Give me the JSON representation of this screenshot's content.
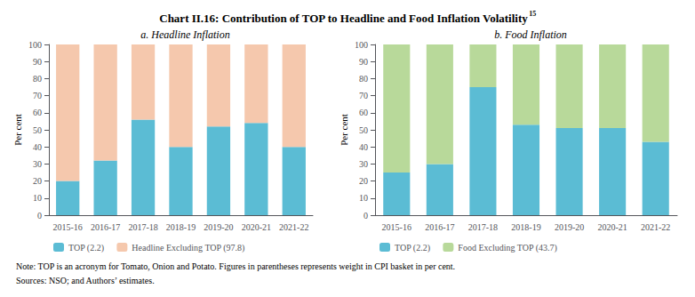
{
  "title": "Chart II.16: Contribution of TOP to Headline and Food Inflation Volatility",
  "annotations": [
    "15",
    "Note: TOP is an acronym for Tomato, Onion and Potato. Figures in parentheses represents weight in CPI basket in per cent.",
    "Sources: NSO; and Authors’ estimates."
  ],
  "chart_data": [
    {
      "type": "bar",
      "title": "a. Headline Inflation",
      "stacked": true,
      "grid": false,
      "legend": "bottom",
      "categories": [
        "2015-16",
        "2016-17",
        "2017-18",
        "2018-19",
        "2019-20",
        "2020-21",
        "2021-22"
      ],
      "ylabel": "Per cent",
      "ylim": [
        0,
        100
      ],
      "yticks": [
        0,
        10,
        20,
        30,
        40,
        50,
        60,
        70,
        80,
        90,
        100
      ],
      "series": [
        {
          "name": "TOP (2.2)",
          "color": "#5bbcd4",
          "values": [
            20,
            32,
            56,
            40,
            52,
            54,
            40
          ]
        },
        {
          "name": "Headline Excluding TOP (97.8)",
          "color": "#f5c8ad",
          "values": [
            80,
            68,
            44,
            60,
            48,
            46,
            60
          ]
        }
      ]
    },
    {
      "type": "bar",
      "title": "b. Food Inflation",
      "stacked": true,
      "grid": false,
      "legend": "bottom",
      "categories": [
        "2015-16",
        "2016-17",
        "2017-18",
        "2018-19",
        "2019-20",
        "2020-21",
        "2021-22"
      ],
      "ylabel": "Per cent",
      "ylim": [
        0,
        100
      ],
      "yticks": [
        0,
        10,
        20,
        30,
        40,
        50,
        60,
        70,
        80,
        90,
        100
      ],
      "series": [
        {
          "name": "TOP (2.2)",
          "color": "#5bbcd4",
          "values": [
            25,
            30,
            75,
            53,
            51,
            51,
            43
          ]
        },
        {
          "name": "Food Excluding TOP (43.7)",
          "color": "#b8d99a",
          "values": [
            75,
            70,
            25,
            47,
            49,
            49,
            57
          ]
        }
      ]
    }
  ]
}
